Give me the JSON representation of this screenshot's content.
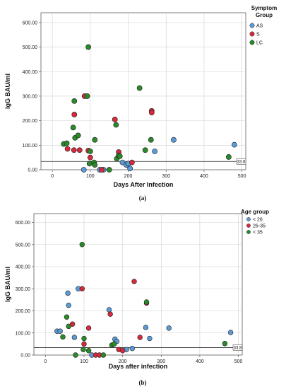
{
  "chart_data": [
    {
      "type": "scatter",
      "panel_label": "(a)",
      "xlabel": "Days After Infection",
      "ylabel": "IgG BAU/ml",
      "xlim": [
        -30,
        510
      ],
      "ylim": [
        0,
        640
      ],
      "xticks": [
        "0",
        "100",
        "200",
        "300",
        "400",
        "500"
      ],
      "yticks": [
        "0.00",
        "100.00",
        "200.00",
        "300.00",
        "400.00",
        "500.00",
        "600.00"
      ],
      "grid": true,
      "legend_title": "Symptom Group",
      "legend_position": "right",
      "reference_line": {
        "y": 33.8,
        "label": "33.8"
      },
      "series": [
        {
          "name": "AS",
          "color": "#5b9bd5",
          "points": [
            [
              83,
              0
            ],
            [
              125,
              0
            ],
            [
              135,
              0
            ],
            [
              185,
              30
            ],
            [
              195,
              20
            ],
            [
              200,
              25
            ],
            [
              205,
              5
            ],
            [
              270,
              75
            ],
            [
              320,
              122
            ],
            [
              480,
              102
            ]
          ]
        },
        {
          "name": "S",
          "color": "#d42a3c",
          "points": [
            [
              40,
              85
            ],
            [
              57,
              80
            ],
            [
              58,
              225
            ],
            [
              72,
              80
            ],
            [
              85,
              300
            ],
            [
              95,
              78
            ],
            [
              100,
              50
            ],
            [
              130,
              0
            ],
            [
              165,
              205
            ],
            [
              175,
              72
            ],
            [
              210,
              30
            ],
            [
              262,
              240
            ],
            [
              262,
              233
            ]
          ]
        },
        {
          "name": "LC",
          "color": "#2a8a2a",
          "points": [
            [
              30,
              105
            ],
            [
              38,
              108
            ],
            [
              55,
              172
            ],
            [
              58,
              280
            ],
            [
              60,
              130
            ],
            [
              68,
              140
            ],
            [
              92,
              300
            ],
            [
              95,
              500
            ],
            [
              98,
              25
            ],
            [
              100,
              75
            ],
            [
              110,
              30
            ],
            [
              112,
              20
            ],
            [
              112,
              122
            ],
            [
              150,
              0
            ],
            [
              168,
              183
            ],
            [
              170,
              45
            ],
            [
              175,
              58
            ],
            [
              178,
              55
            ],
            [
              230,
              333
            ],
            [
              245,
              80
            ],
            [
              260,
              122
            ],
            [
              465,
              52
            ]
          ]
        }
      ]
    },
    {
      "type": "scatter",
      "panel_label": "(b)",
      "xlabel": "Days after infection",
      "ylabel": "IgG BAU/ml",
      "xlim": [
        -30,
        510
      ],
      "ylim": [
        0,
        640
      ],
      "xticks": [
        "0",
        "100",
        "200",
        "300",
        "400",
        "500"
      ],
      "yticks": [
        "0.00",
        "100.00",
        "200.00",
        "300.00",
        "400.00",
        "500.00",
        "600.00"
      ],
      "grid": true,
      "legend_title": "Age group",
      "legend_position": "right",
      "reference_line": {
        "y": 33.8,
        "label": "33.8"
      },
      "series": [
        {
          "name": "< 26",
          "color": "#5b9bd5",
          "points": [
            [
              30,
              108
            ],
            [
              38,
              108
            ],
            [
              58,
              280
            ],
            [
              60,
              225
            ],
            [
              75,
              80
            ],
            [
              85,
              300
            ],
            [
              120,
              0
            ],
            [
              165,
              205
            ],
            [
              180,
              72
            ],
            [
              185,
              62
            ],
            [
              210,
              25
            ],
            [
              225,
              30
            ],
            [
              260,
              125
            ],
            [
              270,
              75
            ],
            [
              320,
              122
            ],
            [
              480,
              102
            ]
          ]
        },
        {
          "name": "26-35",
          "color": "#d42a3c",
          "points": [
            [
              70,
              140
            ],
            [
              95,
              300
            ],
            [
              100,
              50
            ],
            [
              112,
              122
            ],
            [
              130,
              0
            ],
            [
              140,
              0
            ],
            [
              168,
              185
            ],
            [
              190,
              25
            ],
            [
              200,
              20
            ],
            [
              230,
              333
            ],
            [
              245,
              80
            ],
            [
              262,
              235
            ]
          ]
        },
        {
          "name": "< 35",
          "color": "#2a8a2a",
          "points": [
            [
              45,
              82
            ],
            [
              55,
              172
            ],
            [
              60,
              130
            ],
            [
              78,
              0
            ],
            [
              95,
              500
            ],
            [
              98,
              25
            ],
            [
              100,
              75
            ],
            [
              112,
              20
            ],
            [
              150,
              0
            ],
            [
              172,
              45
            ],
            [
              178,
              50
            ],
            [
              262,
              240
            ],
            [
              465,
              52
            ]
          ]
        }
      ]
    }
  ]
}
